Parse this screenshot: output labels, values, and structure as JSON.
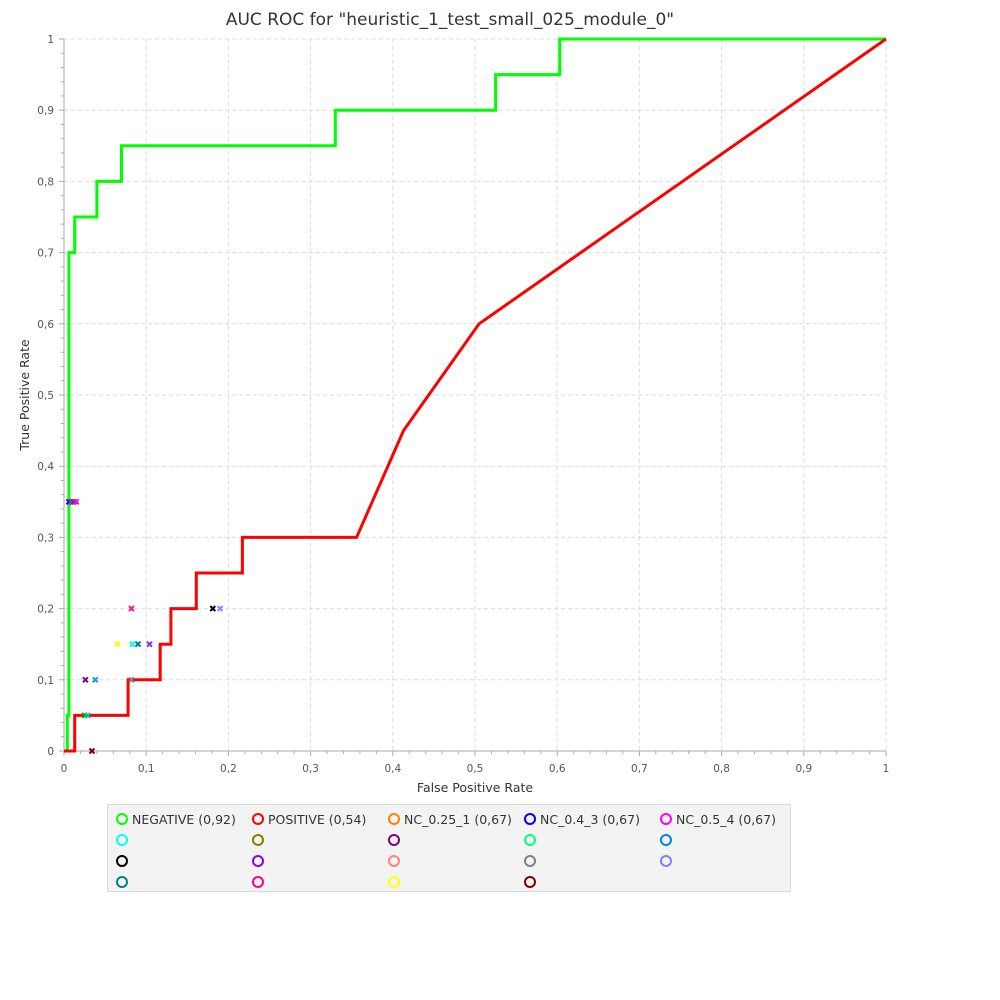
{
  "chart_data": {
    "type": "line",
    "title": "AUC ROC for \"heuristic_1_test_small_025_module_0\"",
    "xlabel": "False Positive Rate",
    "ylabel": "True Positive Rate",
    "xlim": [
      0,
      1
    ],
    "ylim": [
      0,
      1
    ],
    "grid": true,
    "legend_placement": "bottom",
    "x_ticks": [
      "0",
      "0,1",
      "0,2",
      "0,3",
      "0,4",
      "0,5",
      "0,6",
      "0,7",
      "0,8",
      "0,9",
      "1"
    ],
    "y_ticks": [
      "0",
      "0,1",
      "0,2",
      "0,3",
      "0,4",
      "0,5",
      "0,6",
      "0,7",
      "0,8",
      "0,9",
      "1"
    ],
    "series": [
      {
        "name": "NEGATIVE (0,92)",
        "color": "#00ff00",
        "points": [
          [
            0.004,
            0
          ],
          [
            0.004,
            0.05
          ],
          [
            0.006,
            0.05
          ],
          [
            0.006,
            0.7
          ],
          [
            0.013,
            0.7
          ],
          [
            0.013,
            0.75
          ],
          [
            0.04,
            0.75
          ],
          [
            0.04,
            0.8
          ],
          [
            0.07,
            0.8
          ],
          [
            0.07,
            0.85
          ],
          [
            0.33,
            0.85
          ],
          [
            0.33,
            0.9
          ],
          [
            0.525,
            0.9
          ],
          [
            0.525,
            0.95
          ],
          [
            0.603,
            0.95
          ],
          [
            0.603,
            1.0
          ],
          [
            1.0,
            1.0
          ]
        ]
      },
      {
        "name": "POSITIVE (0,54)",
        "color": "#ff0000",
        "points": [
          [
            0,
            0
          ],
          [
            0.013,
            0
          ],
          [
            0.013,
            0.05
          ],
          [
            0.078,
            0.05
          ],
          [
            0.078,
            0.1
          ],
          [
            0.117,
            0.1
          ],
          [
            0.117,
            0.15
          ],
          [
            0.13,
            0.15
          ],
          [
            0.13,
            0.2
          ],
          [
            0.161,
            0.2
          ],
          [
            0.161,
            0.25
          ],
          [
            0.217,
            0.25
          ],
          [
            0.217,
            0.3
          ],
          [
            0.356,
            0.3
          ],
          [
            0.413,
            0.45
          ],
          [
            0.505,
            0.6
          ],
          [
            1.0,
            1.0
          ]
        ]
      }
    ],
    "markers": [
      {
        "x": 0.006,
        "y": 0.35,
        "color": "#0000ff"
      },
      {
        "x": 0.009,
        "y": 0.35,
        "color": "#ff00ff"
      },
      {
        "x": 0.012,
        "y": 0.35,
        "color": "#008000"
      },
      {
        "x": 0.015,
        "y": 0.35,
        "color": "#ff00ff"
      },
      {
        "x": 0.025,
        "y": 0.05,
        "color": "#00aa00"
      },
      {
        "x": 0.029,
        "y": 0.05,
        "color": "#00c0c0"
      },
      {
        "x": 0.034,
        "y": 0.0,
        "color": "#800000"
      },
      {
        "x": 0.026,
        "y": 0.1,
        "color": "#800080"
      },
      {
        "x": 0.038,
        "y": 0.1,
        "color": "#1e90ff"
      },
      {
        "x": 0.065,
        "y": 0.15,
        "color": "#ffff00"
      },
      {
        "x": 0.083,
        "y": 0.15,
        "color": "#00ffff"
      },
      {
        "x": 0.09,
        "y": 0.15,
        "color": "#008080"
      },
      {
        "x": 0.104,
        "y": 0.15,
        "color": "#8a2be2"
      },
      {
        "x": 0.082,
        "y": 0.1,
        "color": "#808080"
      },
      {
        "x": 0.082,
        "y": 0.2,
        "color": "#ff1493"
      },
      {
        "x": 0.181,
        "y": 0.2,
        "color": "#000000"
      },
      {
        "x": 0.19,
        "y": 0.2,
        "color": "#8888ff"
      }
    ],
    "legend": [
      {
        "label": "NEGATIVE (0,92)",
        "color": "#00ff00"
      },
      {
        "label": "POSITIVE (0,54)",
        "color": "#ff0000"
      },
      {
        "label": "NC_0.25_1 (0,67)",
        "color": "#ff8000"
      },
      {
        "label": "NC_0.4_3 (0,67)",
        "color": "#0000ff"
      },
      {
        "label": "NC_0.5_4 (0,67)",
        "color": "#ff00ff"
      },
      {
        "label": "",
        "color": "#00ffff"
      },
      {
        "label": "",
        "color": "#808000"
      },
      {
        "label": "",
        "color": "#800080"
      },
      {
        "label": "",
        "color": "#00ff80"
      },
      {
        "label": "",
        "color": "#0080ff"
      },
      {
        "label": "",
        "color": "#000000"
      },
      {
        "label": "",
        "color": "#8000ff"
      },
      {
        "label": "",
        "color": "#ff8080"
      },
      {
        "label": "",
        "color": "#808080"
      },
      {
        "label": "",
        "color": "#8080ff"
      },
      {
        "label": "",
        "color": "#008080"
      },
      {
        "label": "",
        "color": "#ff0080"
      },
      {
        "label": "",
        "color": "#ffff00"
      },
      {
        "label": "",
        "color": "#800000"
      }
    ]
  }
}
